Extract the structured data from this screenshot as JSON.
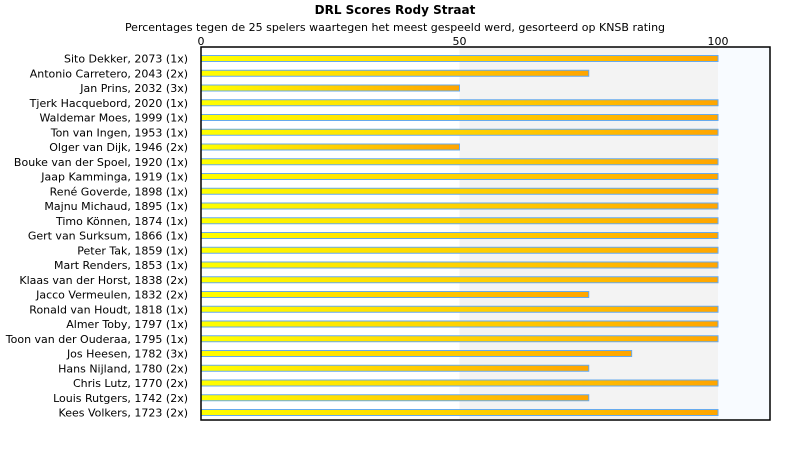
{
  "chart_data": {
    "type": "bar",
    "orientation": "horizontal",
    "title": "DRL Scores Rody Straat",
    "subtitle": "Percentages tegen de 25 spelers waartegen het meest gespeeld werd, gesorteerd op KNSB rating",
    "xlim": [
      0,
      110
    ],
    "xticks": [
      0,
      50,
      100
    ],
    "categories": [
      "Sito Dekker, 2073 (1x)",
      "Antonio Carretero, 2043 (2x)",
      "Jan Prins, 2032 (3x)",
      "Tjerk Hacquebord, 2020 (1x)",
      "Waldemar Moes, 1999 (1x)",
      "Ton van Ingen, 1953 (1x)",
      "Olger van Dijk, 1946 (2x)",
      "Bouke van der Spoel, 1920 (1x)",
      "Jaap Kamminga, 1919 (1x)",
      "René Goverde, 1898 (1x)",
      "Majnu Michaud, 1895 (1x)",
      "Timo Können, 1874 (1x)",
      "Gert van Surksum, 1866 (1x)",
      "Peter Tak, 1859 (1x)",
      "Mart Renders, 1853 (1x)",
      "Klaas van der Horst, 1838 (2x)",
      "Jacco Vermeulen, 1832 (2x)",
      "Ronald van Houdt, 1818 (1x)",
      "Almer Toby, 1797 (1x)",
      "Toon van der Ouderaa, 1795 (1x)",
      "Jos Heesen, 1782 (3x)",
      "Hans Nijland, 1780 (2x)",
      "Chris Lutz, 1770 (2x)",
      "Louis Rutgers, 1742 (2x)",
      "Kees Volkers, 1723 (2x)"
    ],
    "values": [
      100,
      75,
      50,
      100,
      100,
      100,
      50,
      100,
      100,
      100,
      100,
      100,
      100,
      100,
      100,
      100,
      75,
      100,
      100,
      100,
      83.3,
      75,
      100,
      75,
      100
    ],
    "colors": {
      "bar_start": "#ffff00",
      "bar_end": "#ffa500",
      "bar_border": "#66aaee",
      "band_50_100": "#f3f3f3",
      "band_over_100": "#f8fbff"
    }
  }
}
